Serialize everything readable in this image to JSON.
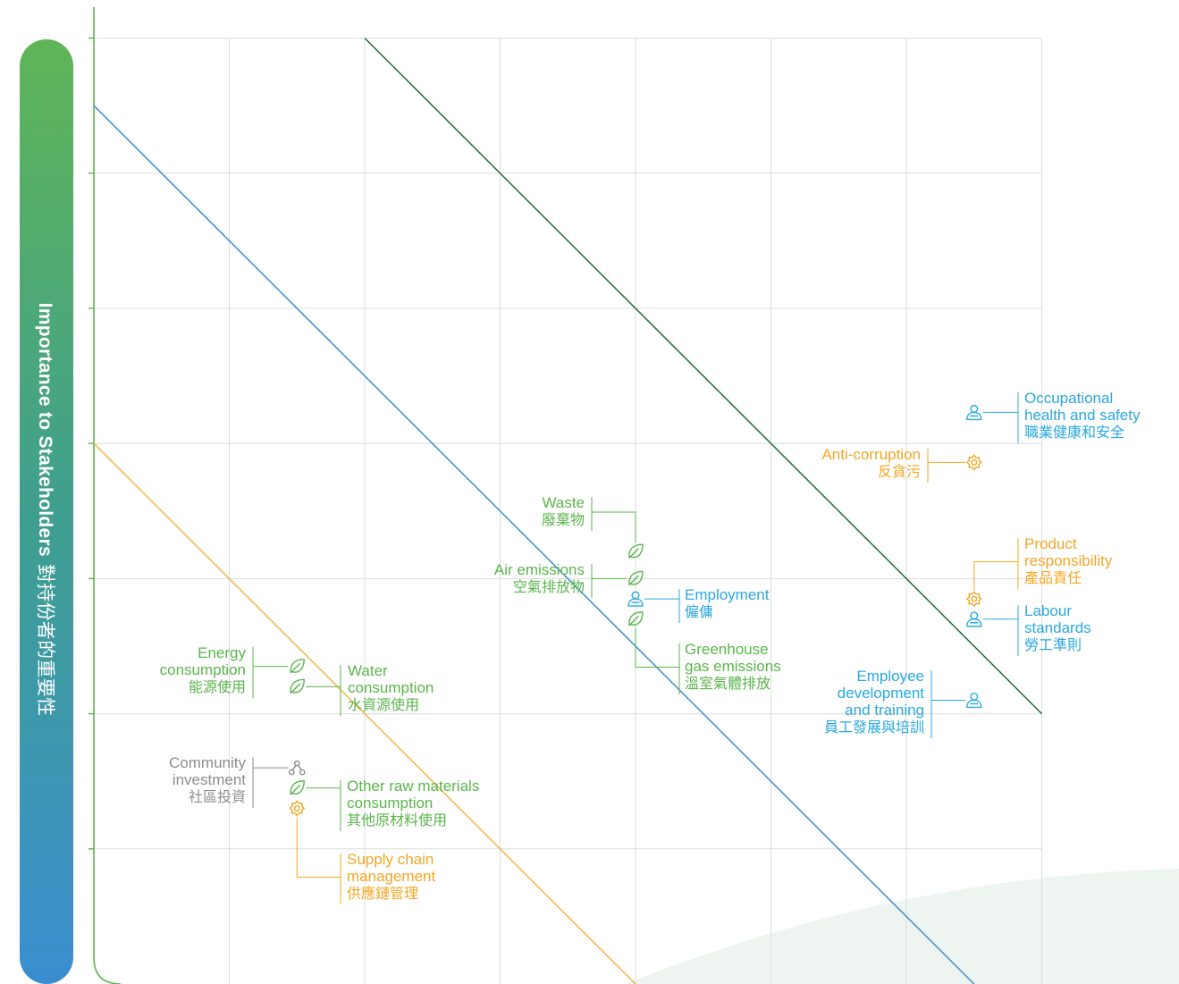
{
  "colors": {
    "environment": "#5ab54b",
    "social": "#29a8e0",
    "governance": "#f5a623",
    "community": "#8c8c8c",
    "diag_green": "#1e6b3f",
    "diag_blue": "#3a8ed0",
    "diag_orange": "#f5b44a",
    "grid": "#dcdcdc",
    "axis": "#5ab54b"
  },
  "ylabel": {
    "en": "Importance to Stakeholders",
    "zh": "對持份者的重要性"
  },
  "chart_data": {
    "type": "scatter",
    "xlim": [
      0,
      7
    ],
    "ylim": [
      0,
      7
    ],
    "grid": true,
    "threshold_lines": [
      {
        "color": "diag_green",
        "from": [
          2,
          7
        ],
        "to": [
          7,
          2
        ]
      },
      {
        "color": "diag_blue",
        "from": [
          0,
          6.5
        ],
        "to": [
          6.5,
          0
        ]
      },
      {
        "color": "diag_orange",
        "from": [
          0,
          4
        ],
        "to": [
          4,
          0
        ]
      }
    ],
    "points": [
      {
        "id": "occupational-health",
        "x": 6.5,
        "y": 4.23,
        "icon": "person-icon",
        "category": "social",
        "label_en": [
          "Occupational",
          "health and safety"
        ],
        "label_zh": "職業健康和安全"
      },
      {
        "id": "anti-corruption",
        "x": 6.5,
        "y": 3.86,
        "icon": "gear-icon",
        "category": "governance",
        "label_en": [
          "Anti-corruption"
        ],
        "label_zh": "反貪污"
      },
      {
        "id": "product-responsibility",
        "x": 6.5,
        "y": 2.85,
        "icon": "gear-icon",
        "category": "governance",
        "label_en": [
          "Product",
          "responsibility"
        ],
        "label_zh": "產品責任"
      },
      {
        "id": "labour-standards",
        "x": 6.5,
        "y": 2.7,
        "icon": "person-icon",
        "category": "social",
        "label_en": [
          "Labour",
          "standards"
        ],
        "label_zh": "勞工準則"
      },
      {
        "id": "employee-development",
        "x": 6.5,
        "y": 2.1,
        "icon": "person-icon",
        "category": "social",
        "label_en": [
          "Employee",
          "development",
          "and training"
        ],
        "label_zh": "員工發展與培訓"
      },
      {
        "id": "waste",
        "x": 4.0,
        "y": 3.2,
        "icon": "leaf-icon",
        "category": "environment",
        "label_en": [
          "Waste"
        ],
        "label_zh": "廢棄物"
      },
      {
        "id": "air-emissions",
        "x": 4.0,
        "y": 3.0,
        "icon": "leaf-icon",
        "category": "environment",
        "label_en": [
          "Air emissions"
        ],
        "label_zh": "空氣排放物"
      },
      {
        "id": "employment",
        "x": 4.0,
        "y": 2.85,
        "icon": "person-icon",
        "category": "social",
        "label_en": [
          "Employment"
        ],
        "label_zh": "僱傭"
      },
      {
        "id": "greenhouse-gas",
        "x": 4.0,
        "y": 2.7,
        "icon": "leaf-icon",
        "category": "environment",
        "label_en": [
          "Greenhouse",
          "gas emissions"
        ],
        "label_zh": "溫室氣體排放"
      },
      {
        "id": "energy-consumption",
        "x": 1.5,
        "y": 2.35,
        "icon": "leaf-icon",
        "category": "environment",
        "label_en": [
          "Energy",
          "consumption"
        ],
        "label_zh": "能源使用"
      },
      {
        "id": "water-consumption",
        "x": 1.5,
        "y": 2.2,
        "icon": "leaf-icon",
        "category": "environment",
        "label_en": [
          "Water",
          "consumption"
        ],
        "label_zh": "水資源使用"
      },
      {
        "id": "community-investment",
        "x": 1.5,
        "y": 1.6,
        "icon": "community-icon",
        "category": "community",
        "label_en": [
          "Community",
          "investment"
        ],
        "label_zh": "社區投資"
      },
      {
        "id": "other-raw-materials",
        "x": 1.5,
        "y": 1.45,
        "icon": "leaf-icon",
        "category": "environment",
        "label_en": [
          "Other raw materials",
          "consumption"
        ],
        "label_zh": "其他原材料使用"
      },
      {
        "id": "supply-chain",
        "x": 1.5,
        "y": 1.3,
        "icon": "gear-icon",
        "category": "governance",
        "label_en": [
          "Supply chain",
          "management"
        ],
        "label_zh": "供應鏈管理"
      }
    ]
  }
}
